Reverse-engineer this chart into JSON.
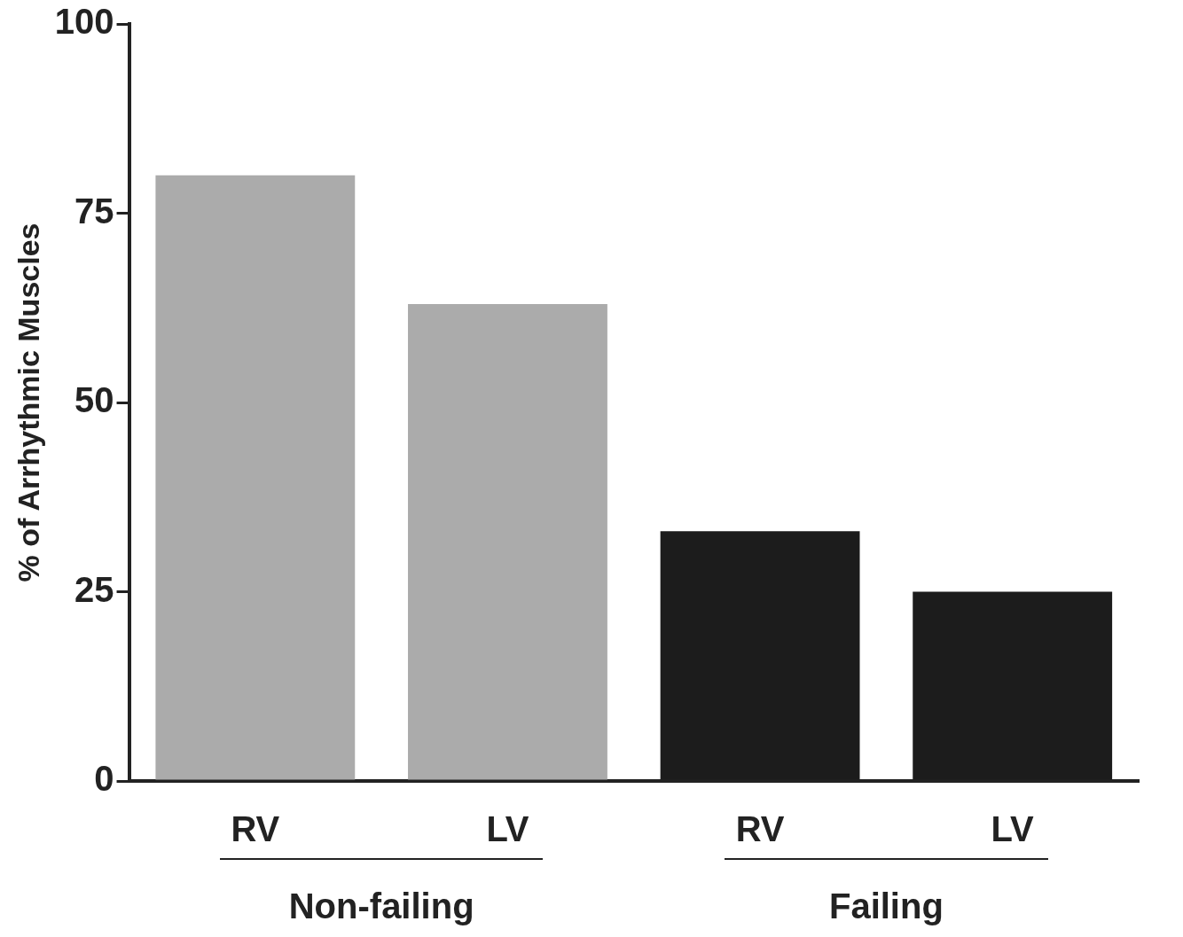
{
  "chart_data": {
    "type": "bar",
    "ylabel": "% of Arrhythmic Muscles",
    "categories": [
      "RV",
      "LV",
      "RV",
      "LV"
    ],
    "values": [
      80,
      63,
      33,
      25
    ],
    "colors": [
      "#ababab",
      "#ababab",
      "#1c1c1c",
      "#1c1c1c"
    ],
    "ylim": [
      0,
      100
    ],
    "yticks": [
      0,
      25,
      50,
      75,
      100
    ],
    "annotations": [
      "Non-failing",
      "Failing"
    ]
  }
}
